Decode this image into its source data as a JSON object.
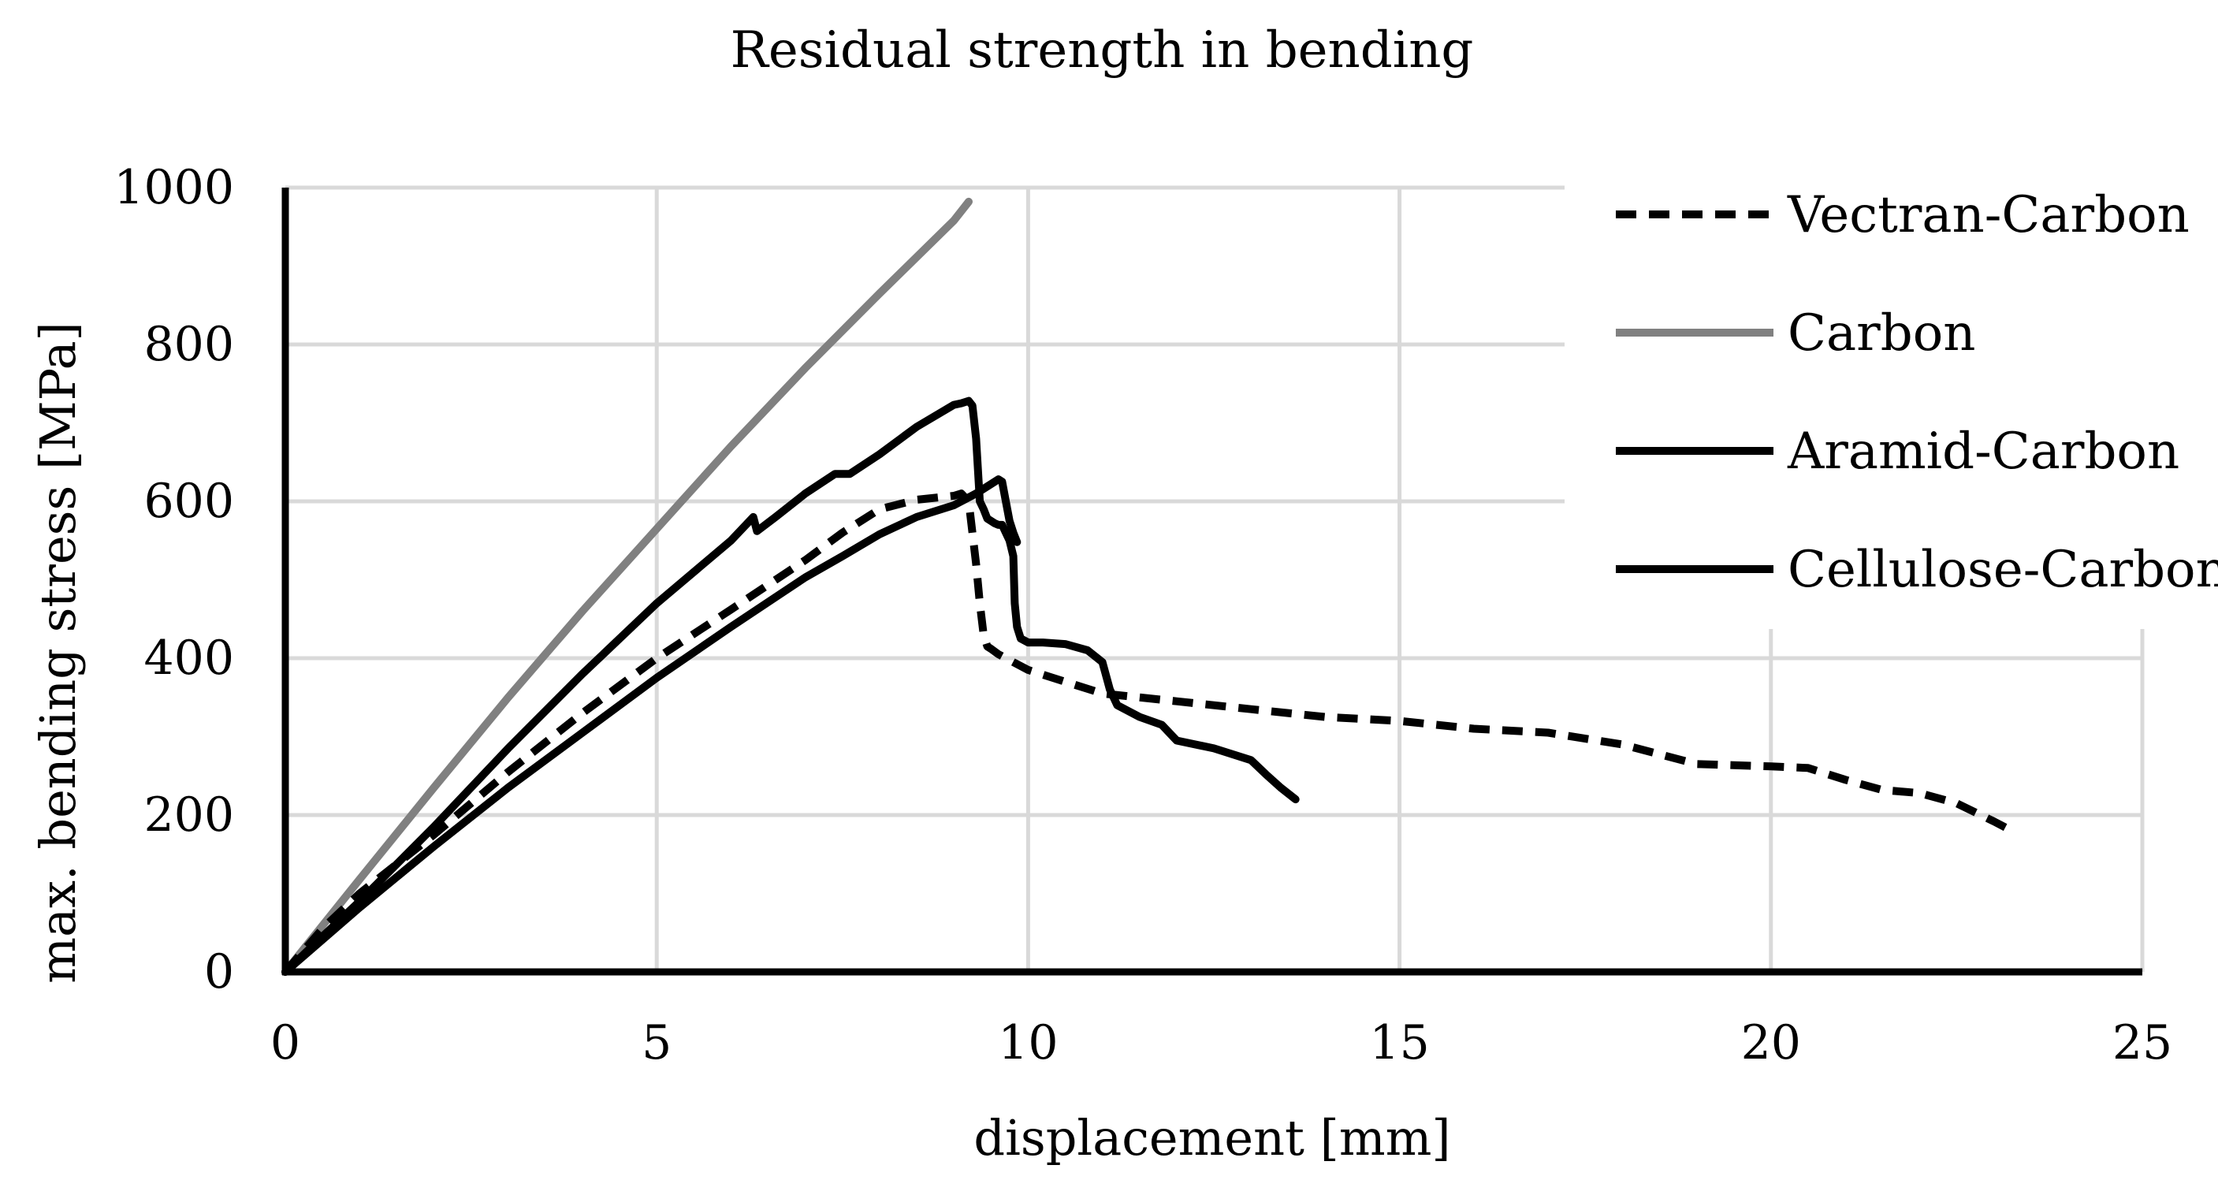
{
  "chart_data": {
    "type": "line",
    "title": "Residual strength in bending",
    "xlabel": "displacement [mm]",
    "ylabel": "max. bending stress [MPa]",
    "xlim": [
      0,
      25
    ],
    "ylim": [
      0,
      1000
    ],
    "xticks": [
      0,
      5,
      10,
      15,
      20,
      25
    ],
    "yticks": [
      0,
      200,
      400,
      600,
      800,
      1000
    ],
    "xtick_labels": [
      "0",
      "5",
      "10",
      "15",
      "20",
      "25"
    ],
    "ytick_labels": [
      "0",
      "200",
      "400",
      "600",
      "800",
      "1000"
    ],
    "grid": true,
    "legend_position": "top-right",
    "series": [
      {
        "name": "Vectran-Carbon",
        "color": "#000000",
        "style": "dashed",
        "x": [
          0,
          0.5,
          1,
          2,
          3,
          4,
          5,
          6,
          7,
          7.5,
          8,
          8.5,
          9,
          9.1,
          9.2,
          9.25,
          9.3,
          9.35,
          9.4,
          9.45,
          9.5,
          9.6,
          9.8,
          10,
          10.5,
          11,
          12,
          13,
          14,
          15,
          16,
          17,
          18,
          19,
          20,
          20.5,
          21,
          21.5,
          22,
          22.5,
          23,
          23.2
        ],
        "y": [
          0,
          55,
          100,
          175,
          255,
          330,
          400,
          462,
          525,
          560,
          590,
          602,
          607,
          610,
          600,
          560,
          520,
          470,
          430,
          415,
          412,
          405,
          395,
          385,
          370,
          355,
          345,
          335,
          325,
          320,
          310,
          305,
          290,
          265,
          262,
          260,
          245,
          232,
          228,
          215,
          192,
          182
        ]
      },
      {
        "name": "Carbon",
        "color": "#808080",
        "style": "solid",
        "x": [
          0,
          1,
          2,
          3,
          4,
          5,
          6,
          7,
          8,
          9,
          9.2
        ],
        "y": [
          0,
          118,
          235,
          350,
          460,
          565,
          670,
          770,
          865,
          958,
          982
        ]
      },
      {
        "name": "Aramid-Carbon",
        "color": "#000000",
        "style": "solid",
        "x": [
          0,
          1,
          2,
          3,
          4,
          5,
          6,
          6.3,
          6.35,
          6.6,
          7,
          7.4,
          7.6,
          8,
          8.5,
          9,
          9.1,
          9.2,
          9.25,
          9.3,
          9.35,
          9.4,
          9.45,
          9.5,
          9.55,
          9.6,
          9.65,
          9.7,
          9.75,
          9.8,
          9.82,
          9.85,
          9.9,
          10,
          10.2,
          10.5,
          10.8,
          11,
          11.1,
          11.2,
          11.5,
          11.8,
          12,
          12.5,
          13,
          13.2,
          13.4,
          13.6
        ],
        "y": [
          0,
          90,
          185,
          285,
          380,
          470,
          550,
          580,
          562,
          580,
          610,
          635,
          635,
          660,
          695,
          723,
          725,
          728,
          722,
          680,
          600,
          590,
          578,
          575,
          572,
          570,
          570,
          560,
          550,
          530,
          470,
          440,
          425,
          420,
          420,
          418,
          410,
          395,
          360,
          340,
          325,
          315,
          295,
          285,
          270,
          252,
          235,
          220
        ]
      },
      {
        "name": "Cellulose-Carbon",
        "color": "#000000",
        "style": "solid",
        "x": [
          0,
          1,
          2,
          3,
          4,
          5,
          6,
          7,
          7.5,
          8,
          8.5,
          9,
          9.3,
          9.5,
          9.6,
          9.65,
          9.7,
          9.75,
          9.8,
          9.85
        ],
        "y": [
          0,
          82,
          160,
          235,
          305,
          375,
          440,
          503,
          530,
          558,
          580,
          595,
          610,
          622,
          628,
          625,
          600,
          575,
          560,
          548
        ]
      }
    ]
  }
}
